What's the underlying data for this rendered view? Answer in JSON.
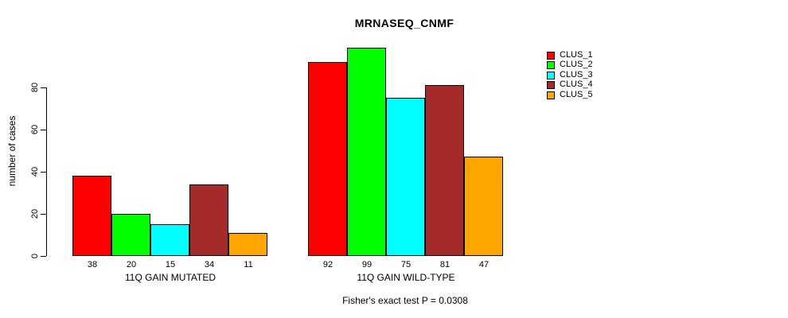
{
  "chart_data": {
    "type": "bar",
    "title": "MRNASEQ_CNMF",
    "ylabel": "number of cases",
    "xlabel": "",
    "yticks": [
      0,
      20,
      40,
      60,
      80
    ],
    "ylim": [
      0,
      105
    ],
    "grid": false,
    "legend_position": "right",
    "categories": [
      "11Q GAIN MUTATED",
      "11Q GAIN WILD-TYPE"
    ],
    "series": [
      {
        "name": "CLUS_1",
        "color": "#ff0000",
        "values": [
          38,
          92
        ]
      },
      {
        "name": "CLUS_2",
        "color": "#00ff00",
        "values": [
          20,
          99
        ]
      },
      {
        "name": "CLUS_3",
        "color": "#00ffff",
        "values": [
          15,
          75
        ]
      },
      {
        "name": "CLUS_4",
        "color": "#a52a2a",
        "values": [
          34,
          81
        ]
      },
      {
        "name": "CLUS_5",
        "color": "#ffa500",
        "values": [
          11,
          47
        ]
      }
    ],
    "bar_value_labels_shown": true,
    "annotation": "Fisher's exact test P = 0.0308",
    "colors": {
      "bar_border": "#000000",
      "text": "#000000",
      "background": "#ffffff"
    }
  }
}
